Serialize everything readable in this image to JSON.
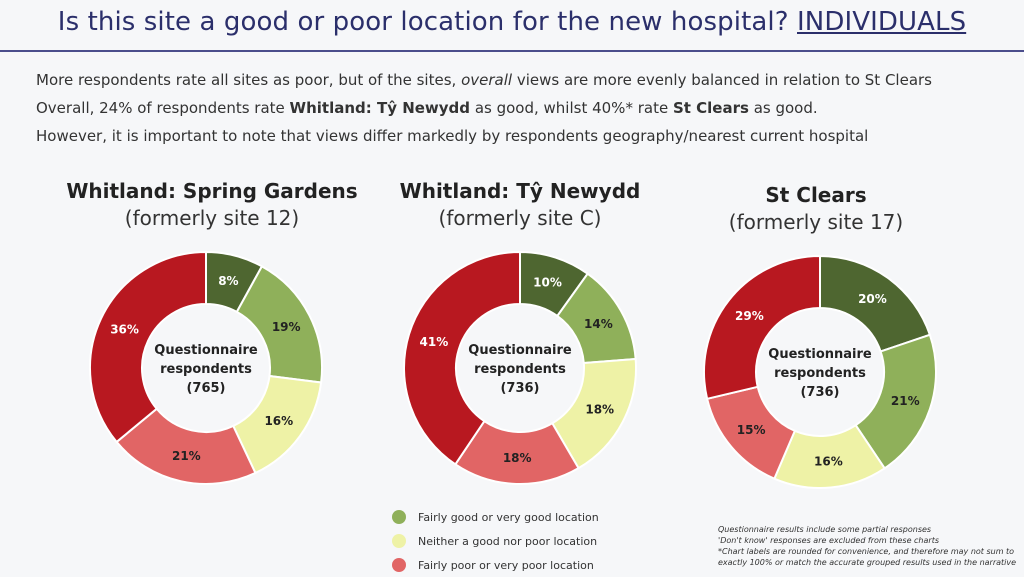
{
  "header": {
    "title_main": "Is this site a good or poor location for the new hospital?",
    "title_tag": "INDIVIDUALS"
  },
  "summary": {
    "line1_a": "More respondents rate all sites as poor, but of the sites, ",
    "line1_em": "overall",
    "line1_b": " views are more evenly balanced in relation to St Clears",
    "line2_a": "Overall, 24% of respondents rate ",
    "line2_b1": "Whitland: Tŷ Newydd",
    "line2_c": " as good, whilst 40%* rate ",
    "line2_b2": "St Clears",
    "line2_d": " as good.",
    "line3": "However, it is important to note that views differ markedly by respondents geography/nearest current hospital"
  },
  "colors": {
    "very_good": "#4e6630",
    "good": "#8fb05a",
    "neutral": "#eef2a6",
    "poor": "#e16565",
    "very_poor": "#b81820",
    "legend_good": "#8fb05a",
    "legend_neutral": "#eef2a6",
    "legend_poor": "#e16565"
  },
  "chart_data": [
    {
      "type": "pie",
      "title": "Whitland: Spring Gardens",
      "subtitle": "(formerly site 12)",
      "center_label": [
        "Questionnaire",
        "respondents",
        "(765)"
      ],
      "categories": [
        "Very good",
        "Fairly good",
        "Neither",
        "Fairly poor",
        "Very poor"
      ],
      "values": [
        8,
        19,
        16,
        21,
        36
      ],
      "labels": [
        "8%",
        "19%",
        "16%",
        "21%",
        "36%"
      ]
    },
    {
      "type": "pie",
      "title": "Whitland: Tŷ Newydd",
      "subtitle": "(formerly site C)",
      "center_label": [
        "Questionnaire",
        "respondents",
        "(736)"
      ],
      "categories": [
        "Very good",
        "Fairly good",
        "Neither",
        "Fairly poor",
        "Very poor"
      ],
      "values": [
        10,
        14,
        18,
        18,
        41
      ],
      "labels": [
        "10%",
        "14%",
        "18%",
        "18%",
        "41%"
      ]
    },
    {
      "type": "pie",
      "title": "St Clears",
      "subtitle": "(formerly site 17)",
      "center_label": [
        "Questionnaire",
        "respondents",
        "(736)"
      ],
      "categories": [
        "Very good",
        "Fairly good",
        "Neither",
        "Fairly poor",
        "Very poor"
      ],
      "values": [
        20,
        21,
        16,
        15,
        29
      ],
      "labels": [
        "20%",
        "21%",
        "16%",
        "15%",
        "29%"
      ]
    }
  ],
  "legend": [
    {
      "label": "Fairly good or very good location",
      "color_key": "legend_good"
    },
    {
      "label": "Neither a good nor poor location",
      "color_key": "legend_neutral"
    },
    {
      "label": "Fairly poor or very poor location",
      "color_key": "legend_poor"
    }
  ],
  "footnote": [
    "Questionnaire results include some partial responses",
    "'Don't know' responses are excluded from these charts",
    "*Chart labels are rounded for convenience, and therefore may not sum to",
    "exactly 100% or match the accurate grouped results used in the narrative"
  ]
}
